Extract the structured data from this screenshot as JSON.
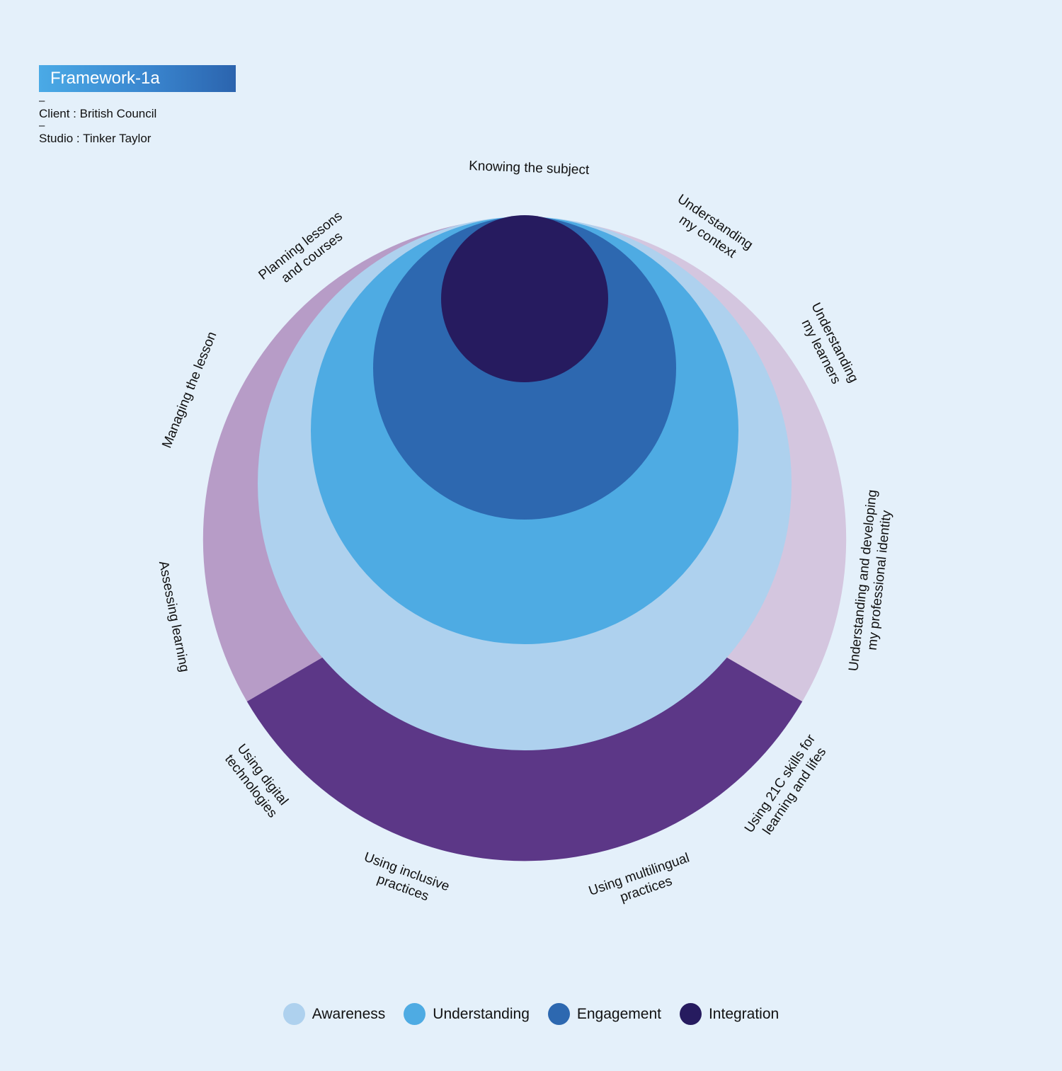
{
  "header": {
    "badge": "Framework-1a",
    "client": "Client : British Council",
    "studio": "Studio : Tinker Taylor"
  },
  "segments": [
    {
      "id": "knowing-subject",
      "lines": [
        "Knowing the subject"
      ]
    },
    {
      "id": "understanding-context",
      "lines": [
        "Understanding",
        "my context"
      ]
    },
    {
      "id": "understanding-learners",
      "lines": [
        "Understanding",
        "my learners"
      ]
    },
    {
      "id": "professional-identity",
      "lines": [
        "Understanding and developing",
        "my professional identity"
      ]
    },
    {
      "id": "21c-skills",
      "lines": [
        "Using 21C skills for",
        "learning and lifes"
      ]
    },
    {
      "id": "multilingual",
      "lines": [
        "Using multilingual",
        "practices"
      ]
    },
    {
      "id": "inclusive",
      "lines": [
        "Using inclusive",
        "practices"
      ]
    },
    {
      "id": "digital",
      "lines": [
        "Using digital",
        "technologies"
      ]
    },
    {
      "id": "assessing",
      "lines": [
        "Assessing learning"
      ]
    },
    {
      "id": "managing",
      "lines": [
        "Managing the lesson"
      ]
    },
    {
      "id": "planning",
      "lines": [
        "Planning lessons",
        "and courses"
      ]
    }
  ],
  "legend": [
    {
      "label": "Awareness",
      "color": "#aed1ee"
    },
    {
      "label": "Understanding",
      "color": "#4eabe3"
    },
    {
      "label": "Engagement",
      "color": "#2d68b0"
    },
    {
      "label": "Integration",
      "color": "#261b5f"
    }
  ],
  "colors": {
    "background": "#e4f0fa",
    "outer_left": "#b79cc7",
    "outer_right": "#d4c6df",
    "outer_bottom": "#5c3787"
  }
}
